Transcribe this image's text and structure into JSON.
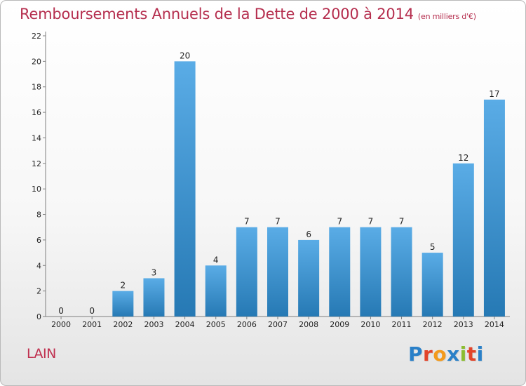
{
  "header": {
    "title": "Remboursements Annuels de la Dette de 2000 à 2014",
    "unit": "(en milliers d'€)"
  },
  "footer": {
    "commune": "LAIN",
    "logo_letters": [
      "P",
      "r",
      "o",
      "x",
      "i",
      "t",
      "i"
    ],
    "logo_colors": [
      "#2a80c8",
      "#e2442a",
      "#f39a1c",
      "#2a80c8",
      "#8bbd2f",
      "#e2442a",
      "#2a80c8"
    ]
  },
  "colors": {
    "bar_top": "#5aace6",
    "bar_bottom": "#2679b4",
    "axis": "#7f7f7f",
    "title": "#b52e4e"
  },
  "chart_data": {
    "type": "bar",
    "title": "Remboursements Annuels de la Dette de 2000 à 2014",
    "xlabel": "",
    "ylabel": "en milliers d'€",
    "categories": [
      "2000",
      "2001",
      "2002",
      "2003",
      "2004",
      "2005",
      "2006",
      "2007",
      "2008",
      "2009",
      "2010",
      "2011",
      "2012",
      "2013",
      "2014"
    ],
    "values": [
      0,
      0,
      2,
      3,
      20,
      4,
      7,
      7,
      6,
      7,
      7,
      7,
      5,
      12,
      17
    ],
    "ylim": [
      0,
      22
    ],
    "yticks": [
      0,
      2,
      4,
      6,
      8,
      10,
      12,
      14,
      16,
      18,
      20,
      22
    ],
    "grid": false
  }
}
